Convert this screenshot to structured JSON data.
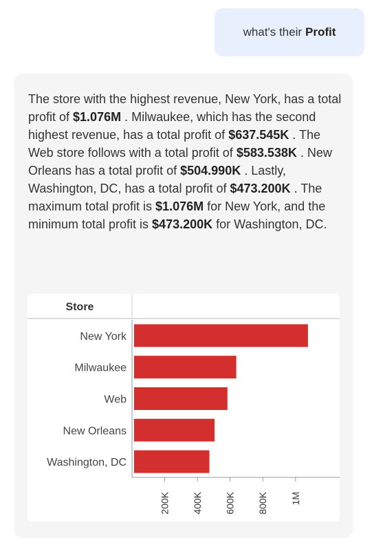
{
  "user_message": {
    "prefix": "what's their",
    "bold": "Profit"
  },
  "answer": {
    "segments": [
      {
        "text": "The store with the highest revenue, New York, has a total profit of ",
        "bold": false
      },
      {
        "text": "$1.076M",
        "bold": true
      },
      {
        "text": " . Milwaukee, which has the second highest revenue, has a total profit of ",
        "bold": false
      },
      {
        "text": "$637.545K",
        "bold": true
      },
      {
        "text": " . The Web store follows with a total profit of ",
        "bold": false
      },
      {
        "text": "$583.538K",
        "bold": true
      },
      {
        "text": " . New Orleans has a total profit of ",
        "bold": false
      },
      {
        "text": "$504.990K",
        "bold": true
      },
      {
        "text": " . Lastly, Washington, DC, has a total profit of ",
        "bold": false
      },
      {
        "text": "$473.200K",
        "bold": true
      },
      {
        "text": " . The maximum total profit is ",
        "bold": false
      },
      {
        "text": "$1.076M",
        "bold": true
      },
      {
        "text": " for New York, and the minimum total profit is ",
        "bold": false
      },
      {
        "text": "$473.200K",
        "bold": true
      },
      {
        "text": " for Washington, DC.",
        "bold": false
      }
    ]
  },
  "colors": {
    "bar": "#d32f2f",
    "user_bubble": "#e8f0fe",
    "card": "#f5f5f5"
  },
  "chart_data": {
    "type": "bar",
    "orientation": "horizontal",
    "ylabel": "Store",
    "categories": [
      "New York",
      "Milwaukee",
      "Web",
      "New Orleans",
      "Washington, DC"
    ],
    "values": [
      1076000,
      637545,
      583538,
      504990,
      473200
    ],
    "xlim": [
      0,
      1270000
    ],
    "xticks": [
      200000,
      400000,
      600000,
      800000,
      1000000
    ],
    "xtick_labels": [
      "200K",
      "400K",
      "600K",
      "800K",
      "1M"
    ],
    "grid": false,
    "legend": "none"
  }
}
